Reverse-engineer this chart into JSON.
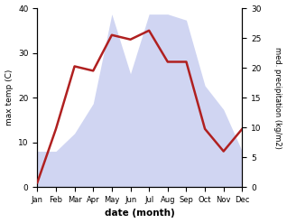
{
  "months": [
    "Jan",
    "Feb",
    "Mar",
    "Apr",
    "May",
    "Jun",
    "Jul",
    "Aug",
    "Sep",
    "Oct",
    "Nov",
    "Dec"
  ],
  "temp": [
    1,
    13,
    27,
    26,
    34,
    33,
    35,
    28,
    28,
    13,
    8,
    13
  ],
  "precip": [
    6,
    6,
    9,
    14,
    29,
    19,
    29,
    29,
    28,
    17,
    13,
    6
  ],
  "temp_ylim": [
    0,
    40
  ],
  "precip_ylim": [
    0,
    30
  ],
  "temp_color": "#b02020",
  "precip_color": "#aab4e8",
  "precip_fill_alpha": 0.55,
  "xlabel": "date (month)",
  "ylabel_left": "max temp (C)",
  "ylabel_right": "med. precipitation (kg/m2)",
  "bg_color": "#ffffff",
  "yticks_left": [
    0,
    10,
    20,
    30,
    40
  ],
  "yticks_right": [
    0,
    5,
    10,
    15,
    20,
    25,
    30
  ]
}
